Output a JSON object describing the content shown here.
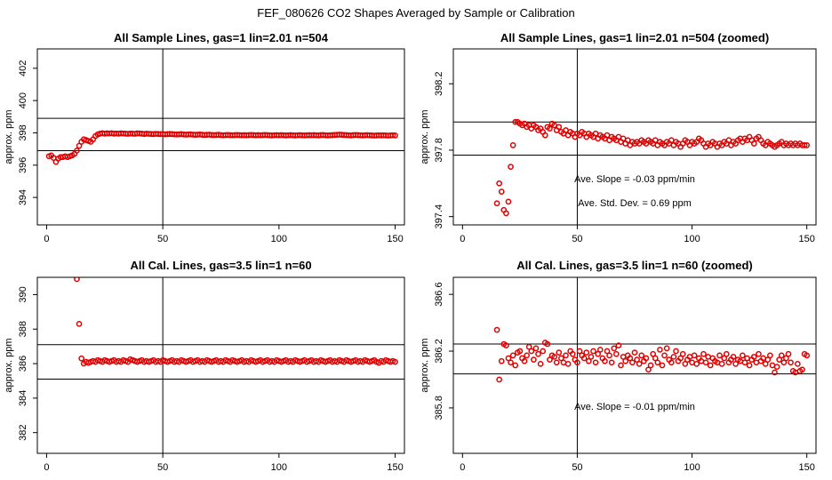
{
  "figure": {
    "title": "FEF_080626  CO2 Shapes Averaged by Sample or Calibration",
    "point_color": "#e00000"
  },
  "chart_data": [
    {
      "type": "scatter",
      "title": "All Sample Lines, gas=1 lin=2.01 n=504",
      "xlabel": "",
      "ylabel": "approx. ppm",
      "xlim": [
        -4,
        154
      ],
      "ylim": [
        392.3,
        403.2
      ],
      "xticks": [
        0,
        50,
        100,
        150
      ],
      "yticks": [
        394,
        396,
        398,
        400,
        402
      ],
      "vline": 50,
      "hlines": [
        396.9,
        398.9
      ],
      "annotations": [],
      "x": [
        1,
        2,
        3,
        4,
        5,
        6,
        7,
        8,
        9,
        10,
        11,
        12,
        13,
        14,
        15,
        16,
        17,
        18,
        19,
        20,
        21,
        22,
        23,
        24,
        25,
        26,
        27,
        28,
        29,
        30,
        31,
        32,
        33,
        34,
        35,
        36,
        37,
        38,
        39,
        40,
        41,
        42,
        43,
        44,
        45,
        46,
        47,
        48,
        49,
        50,
        51,
        52,
        53,
        54,
        55,
        56,
        57,
        58,
        59,
        60,
        61,
        62,
        63,
        64,
        65,
        66,
        67,
        68,
        69,
        70,
        71,
        72,
        73,
        74,
        75,
        76,
        77,
        78,
        79,
        80,
        81,
        82,
        83,
        84,
        85,
        86,
        87,
        88,
        89,
        90,
        91,
        92,
        93,
        94,
        95,
        96,
        97,
        98,
        99,
        100,
        101,
        102,
        103,
        104,
        105,
        106,
        107,
        108,
        109,
        110,
        111,
        112,
        113,
        114,
        115,
        116,
        117,
        118,
        119,
        120,
        121,
        122,
        123,
        124,
        125,
        126,
        127,
        128,
        129,
        130,
        131,
        132,
        133,
        134,
        135,
        136,
        137,
        138,
        139,
        140,
        141,
        142,
        143,
        144,
        145,
        146,
        147,
        148,
        149,
        150
      ],
      "y": [
        396.55,
        396.6,
        396.45,
        396.2,
        396.4,
        396.5,
        396.5,
        396.55,
        396.5,
        396.55,
        396.6,
        396.7,
        396.9,
        397.2,
        397.45,
        397.6,
        397.55,
        397.5,
        397.45,
        397.6,
        397.8,
        397.9,
        397.95,
        397.98,
        397.95,
        397.97,
        397.96,
        397.98,
        397.95,
        397.96,
        397.95,
        397.97,
        397.96,
        397.95,
        397.94,
        397.96,
        397.95,
        397.94,
        397.97,
        397.96,
        397.95,
        397.93,
        397.95,
        397.94,
        397.93,
        397.92,
        397.94,
        397.93,
        397.92,
        397.93,
        397.91,
        397.92,
        397.93,
        397.92,
        397.91,
        397.9,
        397.91,
        397.92,
        397.9,
        397.89,
        397.9,
        397.91,
        397.89,
        397.88,
        397.89,
        397.9,
        397.88,
        397.87,
        397.88,
        397.89,
        397.87,
        397.86,
        397.87,
        397.88,
        397.86,
        397.85,
        397.86,
        397.87,
        397.86,
        397.85,
        397.86,
        397.87,
        397.86,
        397.85,
        397.86,
        397.85,
        397.86,
        397.87,
        397.86,
        397.85,
        397.86,
        397.85,
        397.86,
        397.87,
        397.86,
        397.85,
        397.84,
        397.85,
        397.86,
        397.85,
        397.86,
        397.85,
        397.84,
        397.85,
        397.86,
        397.85,
        397.84,
        397.85,
        397.86,
        397.85,
        397.84,
        397.85,
        397.86,
        397.85,
        397.86,
        397.85,
        397.84,
        397.86,
        397.87,
        397.85,
        397.84,
        397.85,
        397.86,
        397.87,
        397.88,
        397.89,
        397.88,
        397.87,
        397.86,
        397.85,
        397.84,
        397.86,
        397.87,
        397.86,
        397.85,
        397.84,
        397.85,
        397.86,
        397.85,
        397.84,
        397.83,
        397.84,
        397.85,
        397.84,
        397.85,
        397.84,
        397.83,
        397.84,
        397.85,
        397.84
      ]
    },
    {
      "type": "scatter",
      "title": "All Sample Lines, gas=1 lin=2.01 n=504 (zoomed)",
      "xlabel": "",
      "ylabel": "approx. ppm",
      "xlim": [
        -4,
        154
      ],
      "ylim": [
        397.35,
        398.41
      ],
      "xticks": [
        0,
        50,
        100,
        150
      ],
      "yticks": [
        397.4,
        397.8,
        398.2
      ],
      "vline": 50,
      "hlines": [
        397.77,
        397.97
      ],
      "annotations": [
        "Ave. Slope = -0.03  ppm/min",
        "Ave. Std. Dev. = 0.69  ppm"
      ],
      "x": [
        15,
        16,
        17,
        18,
        19,
        20,
        21,
        22,
        23,
        24,
        25,
        26,
        27,
        28,
        29,
        30,
        31,
        32,
        33,
        34,
        35,
        36,
        37,
        38,
        39,
        40,
        41,
        42,
        43,
        44,
        45,
        46,
        47,
        48,
        49,
        50,
        51,
        52,
        53,
        54,
        55,
        56,
        57,
        58,
        59,
        60,
        61,
        62,
        63,
        64,
        65,
        66,
        67,
        68,
        69,
        70,
        71,
        72,
        73,
        74,
        75,
        76,
        77,
        78,
        79,
        80,
        81,
        82,
        83,
        84,
        85,
        86,
        87,
        88,
        89,
        90,
        91,
        92,
        93,
        94,
        95,
        96,
        97,
        98,
        99,
        100,
        101,
        102,
        103,
        104,
        105,
        106,
        107,
        108,
        109,
        110,
        111,
        112,
        113,
        114,
        115,
        116,
        117,
        118,
        119,
        120,
        121,
        122,
        123,
        124,
        125,
        126,
        127,
        128,
        129,
        130,
        131,
        132,
        133,
        134,
        135,
        136,
        137,
        138,
        139,
        140,
        141,
        142,
        143,
        144,
        145,
        146,
        147,
        148,
        149,
        150
      ],
      "y": [
        397.48,
        397.6,
        397.55,
        397.44,
        397.42,
        397.49,
        397.7,
        397.83,
        397.97,
        397.97,
        397.96,
        397.95,
        397.96,
        397.94,
        397.95,
        397.93,
        397.95,
        397.94,
        397.92,
        397.93,
        397.91,
        397.89,
        397.94,
        397.93,
        397.96,
        397.95,
        397.92,
        397.94,
        397.91,
        397.9,
        397.92,
        397.89,
        397.91,
        397.9,
        397.88,
        397.9,
        397.89,
        397.91,
        397.9,
        397.88,
        397.9,
        397.89,
        397.88,
        397.9,
        397.87,
        397.89,
        397.88,
        397.87,
        397.89,
        397.86,
        397.88,
        397.87,
        397.86,
        397.88,
        397.85,
        397.87,
        397.84,
        397.86,
        397.83,
        397.85,
        397.84,
        397.85,
        397.84,
        397.86,
        397.85,
        397.84,
        397.86,
        397.85,
        397.84,
        397.86,
        397.83,
        397.85,
        397.84,
        397.83,
        397.85,
        397.84,
        397.86,
        397.83,
        397.85,
        397.84,
        397.82,
        397.84,
        397.86,
        397.85,
        397.83,
        397.85,
        397.84,
        397.85,
        397.87,
        397.86,
        397.84,
        397.82,
        397.84,
        397.83,
        397.85,
        397.84,
        397.82,
        397.84,
        397.83,
        397.85,
        397.84,
        397.86,
        397.83,
        397.85,
        397.84,
        397.86,
        397.87,
        397.85,
        397.87,
        397.86,
        397.88,
        397.86,
        397.84,
        397.87,
        397.88,
        397.86,
        397.84,
        397.83,
        397.85,
        397.84,
        397.83,
        397.82,
        397.83,
        397.84,
        397.85,
        397.83,
        397.84,
        397.83,
        397.84,
        397.83,
        397.84,
        397.83,
        397.84,
        397.83,
        397.83,
        397.83
      ]
    },
    {
      "type": "scatter",
      "title": "All Cal. Lines, gas=3.5 lin=1 n=60",
      "xlabel": "",
      "ylabel": "approx. ppm",
      "xlim": [
        -4,
        154
      ],
      "ylim": [
        380.8,
        391.0
      ],
      "xticks": [
        0,
        50,
        100,
        150
      ],
      "yticks": [
        382,
        384,
        386,
        388,
        390
      ],
      "vline": 50,
      "hlines": [
        385.1,
        387.1
      ],
      "annotations": [],
      "x": [
        13,
        14,
        15,
        16,
        17,
        18,
        19,
        20,
        21,
        22,
        23,
        24,
        25,
        26,
        27,
        28,
        29,
        30,
        31,
        32,
        33,
        34,
        35,
        36,
        37,
        38,
        39,
        40,
        41,
        42,
        43,
        44,
        45,
        46,
        47,
        48,
        49,
        50,
        51,
        52,
        53,
        54,
        55,
        56,
        57,
        58,
        59,
        60,
        61,
        62,
        63,
        64,
        65,
        66,
        67,
        68,
        69,
        70,
        71,
        72,
        73,
        74,
        75,
        76,
        77,
        78,
        79,
        80,
        81,
        82,
        83,
        84,
        85,
        86,
        87,
        88,
        89,
        90,
        91,
        92,
        93,
        94,
        95,
        96,
        97,
        98,
        99,
        100,
        101,
        102,
        103,
        104,
        105,
        106,
        107,
        108,
        109,
        110,
        111,
        112,
        113,
        114,
        115,
        116,
        117,
        118,
        119,
        120,
        121,
        122,
        123,
        124,
        125,
        126,
        127,
        128,
        129,
        130,
        131,
        132,
        133,
        134,
        135,
        136,
        137,
        138,
        139,
        140,
        141,
        142,
        143,
        144,
        145,
        146,
        147,
        148,
        149,
        150
      ],
      "y": [
        390.9,
        388.3,
        386.3,
        386.0,
        386.1,
        386.05,
        386.1,
        386.15,
        386.1,
        386.2,
        386.15,
        386.1,
        386.2,
        386.15,
        386.1,
        386.15,
        386.2,
        386.1,
        386.15,
        386.1,
        386.2,
        386.15,
        386.1,
        386.25,
        386.2,
        386.15,
        386.1,
        386.15,
        386.2,
        386.1,
        386.15,
        386.1,
        386.15,
        386.2,
        386.1,
        386.15,
        386.1,
        386.2,
        386.15,
        386.1,
        386.15,
        386.2,
        386.1,
        386.15,
        386.1,
        386.2,
        386.15,
        386.1,
        386.15,
        386.2,
        386.1,
        386.15,
        386.2,
        386.1,
        386.15,
        386.1,
        386.2,
        386.15,
        386.1,
        386.15,
        386.2,
        386.1,
        386.15,
        386.1,
        386.2,
        386.15,
        386.1,
        386.2,
        386.15,
        386.1,
        386.15,
        386.2,
        386.1,
        386.15,
        386.1,
        386.2,
        386.15,
        386.1,
        386.15,
        386.2,
        386.1,
        386.15,
        386.2,
        386.1,
        386.15,
        386.1,
        386.2,
        386.15,
        386.1,
        386.15,
        386.2,
        386.1,
        386.15,
        386.1,
        386.2,
        386.15,
        386.1,
        386.15,
        386.2,
        386.1,
        386.15,
        386.2,
        386.1,
        386.15,
        386.1,
        386.2,
        386.15,
        386.1,
        386.15,
        386.2,
        386.1,
        386.15,
        386.1,
        386.2,
        386.15,
        386.1,
        386.2,
        386.15,
        386.1,
        386.15,
        386.2,
        386.1,
        386.15,
        386.1,
        386.2,
        386.15,
        386.1,
        386.15,
        386.2,
        386.1,
        386.05,
        386.15,
        386.1,
        386.2,
        386.15,
        386.1,
        386.15,
        386.1
      ]
    },
    {
      "type": "scatter",
      "title": "All Cal. Lines, gas=3.5 lin=1 n=60 (zoomed)",
      "xlabel": "",
      "ylabel": "approx. ppm",
      "xlim": [
        -4,
        154
      ],
      "ylim": [
        385.48,
        386.72
      ],
      "xticks": [
        0,
        50,
        100,
        150
      ],
      "yticks": [
        385.8,
        386.2,
        386.6
      ],
      "vline": 50,
      "hlines": [
        386.04,
        386.25
      ],
      "annotations": [
        "Ave. Slope = -0.01  ppm/min"
      ],
      "x": [
        15,
        16,
        17,
        18,
        19,
        20,
        21,
        22,
        23,
        24,
        25,
        26,
        27,
        28,
        29,
        30,
        31,
        32,
        33,
        34,
        35,
        36,
        37,
        38,
        39,
        40,
        41,
        42,
        43,
        44,
        45,
        46,
        47,
        48,
        49,
        50,
        51,
        52,
        53,
        54,
        55,
        56,
        57,
        58,
        59,
        60,
        61,
        62,
        63,
        64,
        65,
        66,
        67,
        68,
        69,
        70,
        71,
        72,
        73,
        74,
        75,
        76,
        77,
        78,
        79,
        80,
        81,
        82,
        83,
        84,
        85,
        86,
        87,
        88,
        89,
        90,
        91,
        92,
        93,
        94,
        95,
        96,
        97,
        98,
        99,
        100,
        101,
        102,
        103,
        104,
        105,
        106,
        107,
        108,
        109,
        110,
        111,
        112,
        113,
        114,
        115,
        116,
        117,
        118,
        119,
        120,
        121,
        122,
        123,
        124,
        125,
        126,
        127,
        128,
        129,
        130,
        131,
        132,
        133,
        134,
        135,
        136,
        137,
        138,
        139,
        140,
        141,
        142,
        143,
        144,
        145,
        146,
        147,
        148,
        149,
        150
      ],
      "y": [
        386.35,
        386.0,
        386.13,
        386.25,
        386.24,
        386.15,
        386.12,
        386.17,
        386.1,
        386.19,
        386.2,
        386.15,
        386.13,
        386.17,
        386.23,
        386.2,
        386.14,
        386.22,
        386.18,
        386.11,
        386.2,
        386.26,
        386.25,
        386.14,
        386.17,
        386.16,
        386.12,
        386.19,
        386.15,
        386.12,
        386.17,
        386.11,
        386.2,
        386.18,
        386.14,
        386.12,
        386.2,
        386.17,
        386.15,
        386.19,
        386.13,
        386.16,
        386.2,
        386.12,
        386.18,
        386.21,
        386.15,
        386.13,
        386.2,
        386.17,
        386.12,
        386.22,
        386.18,
        386.24,
        386.1,
        386.16,
        386.13,
        386.17,
        386.15,
        386.12,
        386.19,
        386.14,
        386.11,
        386.17,
        386.13,
        386.15,
        386.07,
        386.1,
        386.18,
        386.15,
        386.12,
        386.21,
        386.1,
        386.17,
        386.22,
        386.14,
        386.12,
        386.16,
        386.2,
        386.13,
        386.15,
        386.18,
        386.11,
        386.14,
        386.16,
        386.12,
        386.17,
        386.11,
        386.15,
        386.13,
        386.18,
        386.12,
        386.16,
        386.1,
        386.15,
        386.13,
        386.12,
        386.17,
        386.11,
        386.15,
        386.18,
        386.12,
        386.14,
        386.16,
        386.11,
        386.14,
        386.13,
        386.17,
        386.12,
        386.15,
        386.1,
        386.14,
        386.16,
        386.12,
        386.18,
        386.13,
        386.15,
        386.11,
        386.14,
        386.17,
        386.1,
        386.05,
        386.09,
        386.14,
        386.17,
        386.12,
        386.15,
        386.18,
        386.12,
        386.06,
        386.05,
        386.11,
        386.06,
        386.07,
        386.18,
        386.17
      ]
    }
  ]
}
